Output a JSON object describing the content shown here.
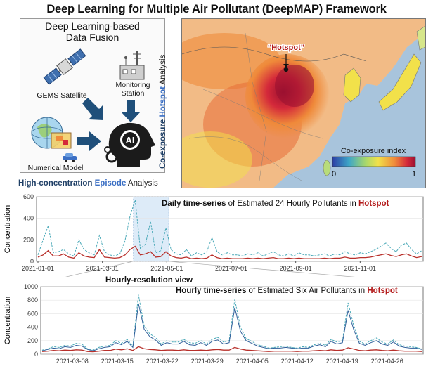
{
  "title": "Deep Learning for Multiple Air Pollutant (DeepMAP) Framework",
  "fusion": {
    "title_line1": "Deep Learning-based",
    "title_line2": "Data Fusion",
    "satellite": "GEMS Satellite",
    "station_line1": "Monitoring",
    "station_line2": "Station",
    "model": "Numerical Model",
    "ai_label": "AI"
  },
  "side_label": {
    "prefix": "Co-exposure",
    "highlight": "Hotspot",
    "suffix": " Analysis"
  },
  "episode_label": {
    "prefix": "High-concentration",
    "highlight": "Episode",
    "suffix": " Analysis"
  },
  "map": {
    "hotspot_label": "“Hotspot”",
    "colorbar_title": "Co-exposure index",
    "colorbar_min": "0",
    "colorbar_max": "1",
    "colors": [
      "#2c3fa6",
      "#3ea7c7",
      "#a8d86a",
      "#f2e14a",
      "#ef8a3a",
      "#d4293a",
      "#9b1030"
    ]
  },
  "chart_data": [
    {
      "type": "line",
      "title_bold": "Daily time-series",
      "title_mid": " of Estimated 24 Hourly Pollutants in ",
      "title_red": "Hotspot",
      "ylabel": "Concentration",
      "ylim": [
        0,
        600
      ],
      "yticks": [
        "0",
        "200",
        "400",
        "600"
      ],
      "x_tick_labels": [
        "2021-01-01",
        "2021-03-01",
        "2021-05-01",
        "2021-07-01",
        "2021-09-01",
        "2021-11-01"
      ],
      "highlight_range": [
        "2021-03-01",
        "2021-05-01"
      ],
      "series": [
        {
          "color": "#4aa9b8",
          "values": [
            60,
            200,
            330,
            80,
            90,
            110,
            70,
            50,
            200,
            110,
            80,
            60,
            240,
            90,
            60,
            50,
            70,
            190,
            420,
            570,
            120,
            160,
            370,
            80,
            100,
            310,
            110,
            70,
            60,
            110,
            50,
            80,
            60,
            90,
            220,
            90,
            60,
            80,
            60,
            60,
            50,
            70,
            60,
            80,
            50,
            70,
            90,
            60,
            50,
            70,
            50,
            80,
            60,
            60,
            50,
            60,
            70,
            50,
            70,
            60,
            90,
            70,
            60,
            80,
            70,
            90,
            110,
            140,
            170,
            120,
            90,
            150,
            170,
            110,
            70,
            100
          ]
        },
        {
          "color": "#b8302b",
          "values": [
            40,
            60,
            100,
            50,
            50,
            70,
            40,
            30,
            80,
            50,
            40,
            35,
            110,
            40,
            35,
            30,
            35,
            60,
            110,
            140,
            60,
            70,
            90,
            40,
            45,
            90,
            50,
            35,
            30,
            40,
            25,
            30,
            25,
            30,
            60,
            35,
            25,
            30,
            25,
            25,
            25,
            30,
            25,
            30,
            25,
            30,
            35,
            25,
            25,
            30,
            25,
            30,
            25,
            25,
            25,
            25,
            30,
            25,
            30,
            30,
            40,
            30,
            30,
            35,
            35,
            40,
            50,
            60,
            70,
            55,
            45,
            60,
            70,
            50,
            35,
            45
          ]
        }
      ]
    },
    {
      "type": "line",
      "title_bold": "Hourly time-series",
      "title_mid": " of Estimated Six Air Pollutants in ",
      "title_red": "Hotspot",
      "ylabel": "Concentration",
      "ylim": [
        0,
        1000
      ],
      "yticks": [
        "0",
        "200",
        "400",
        "600",
        "800",
        "1000"
      ],
      "x_tick_labels": [
        "2021-03-08",
        "2021-03-15",
        "2021-03-22",
        "2021-03-29",
        "2021-04-05",
        "2021-04-12",
        "2021-04-19",
        "2021-04-26"
      ],
      "series": [
        {
          "color": "#4aa9b8",
          "values": [
            60,
            80,
            110,
            100,
            130,
            120,
            160,
            150,
            80,
            60,
            100,
            120,
            130,
            200,
            160,
            220,
            120,
            880,
            420,
            300,
            250,
            150,
            200,
            180,
            180,
            220,
            170,
            160,
            200,
            150,
            220,
            250,
            180,
            200,
            810,
            400,
            230,
            190,
            140,
            120,
            90,
            100,
            110,
            120,
            100,
            90,
            110,
            100,
            140,
            160,
            130,
            220,
            180,
            200,
            760,
            420,
            190,
            150,
            200,
            240,
            180,
            150,
            210,
            140,
            120,
            110,
            100,
            80
          ]
        },
        {
          "color": "#2f5f9a",
          "values": [
            50,
            70,
            90,
            80,
            110,
            100,
            130,
            120,
            70,
            50,
            80,
            100,
            110,
            170,
            140,
            190,
            100,
            750,
            370,
            260,
            210,
            130,
            170,
            150,
            150,
            190,
            140,
            130,
            170,
            130,
            190,
            210,
            150,
            170,
            690,
            340,
            200,
            160,
            120,
            100,
            80,
            90,
            90,
            100,
            90,
            80,
            90,
            90,
            120,
            140,
            110,
            190,
            150,
            170,
            650,
            360,
            160,
            130,
            170,
            200,
            150,
            130,
            180,
            120,
            100,
            90,
            90,
            70
          ]
        },
        {
          "color": "#b8302b",
          "values": [
            40,
            45,
            55,
            50,
            60,
            55,
            65,
            60,
            40,
            35,
            45,
            55,
            55,
            75,
            65,
            80,
            55,
            110,
            80,
            70,
            65,
            55,
            60,
            60,
            55,
            65,
            55,
            55,
            60,
            55,
            65,
            70,
            60,
            60,
            100,
            75,
            60,
            55,
            50,
            45,
            40,
            45,
            45,
            45,
            45,
            40,
            45,
            45,
            50,
            55,
            50,
            65,
            55,
            60,
            95,
            75,
            55,
            50,
            60,
            65,
            55,
            50,
            60,
            50,
            45,
            45,
            45,
            40
          ]
        }
      ]
    }
  ],
  "hourly_view_label": "Hourly-resolution view"
}
